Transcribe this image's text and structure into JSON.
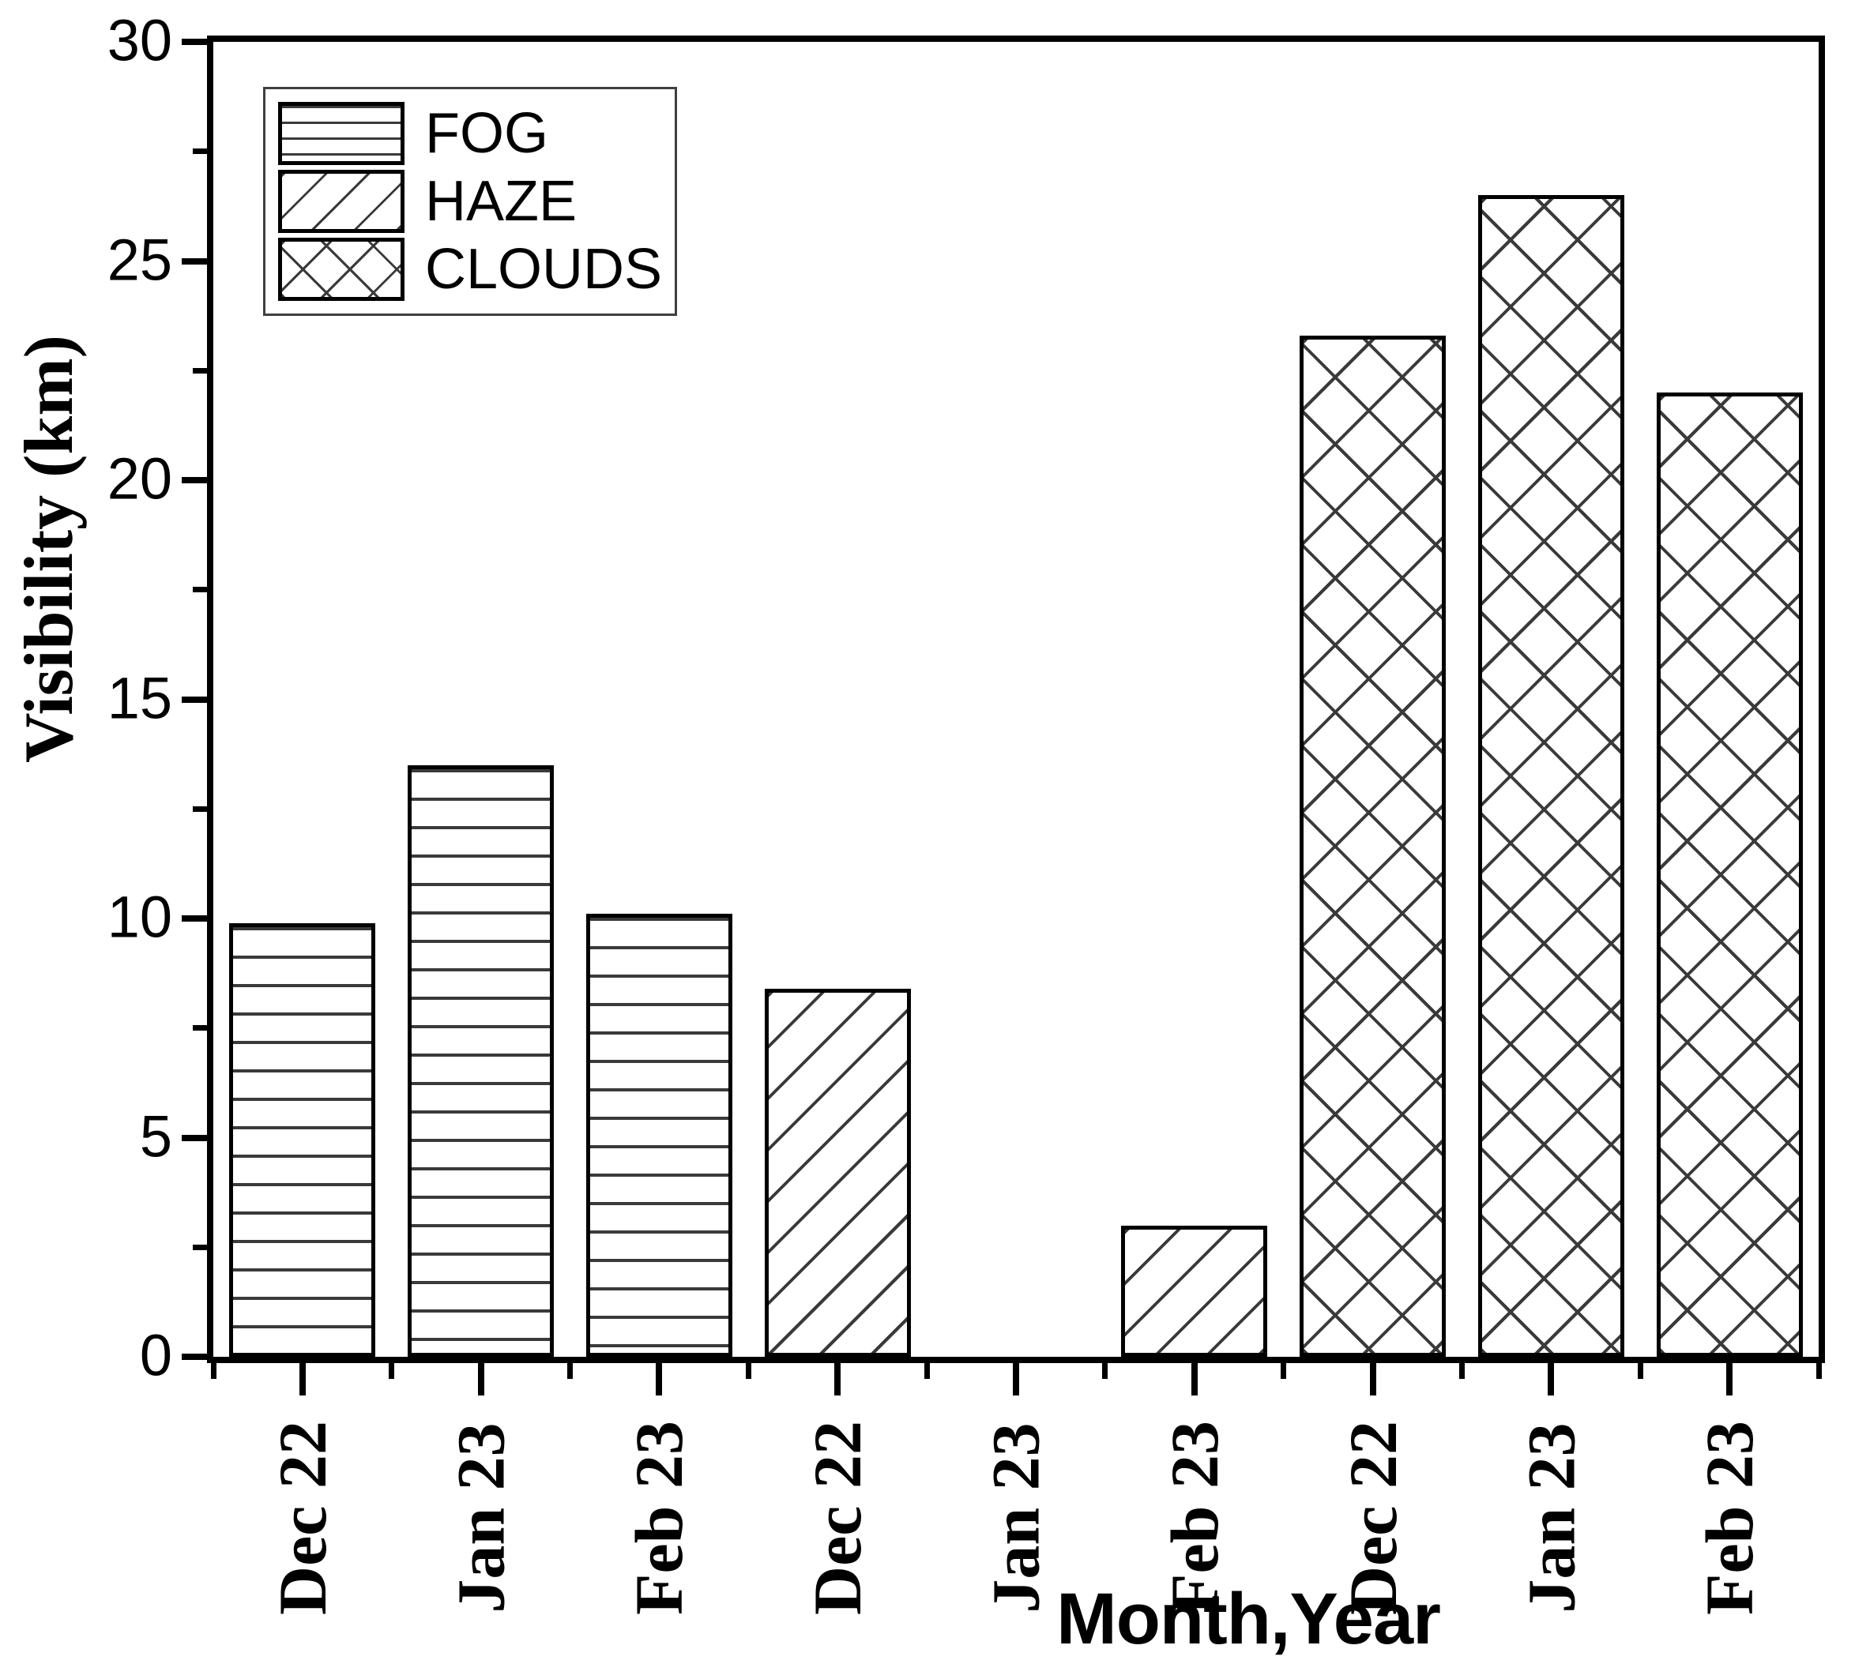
{
  "figure": {
    "background": "#ffffff",
    "ink_color": "#000000",
    "pattern_line_color": "#3a3a3a"
  },
  "chart_data": {
    "type": "bar",
    "title": "",
    "xlabel": "Month,Year",
    "ylabel": "Visibility (km)",
    "ylim": [
      0,
      30
    ],
    "y_major_ticks": [
      0,
      5,
      10,
      15,
      20,
      25,
      30
    ],
    "y_minor_step": 2.5,
    "grid": false,
    "legend_position": "top-left-inside",
    "categories": [
      "Dec 22",
      "Jan 23",
      "Feb 23",
      "Dec 22",
      "Jan 23",
      "Feb 23",
      "Dec 22",
      "Jan 23",
      "Feb 23"
    ],
    "series": [
      {
        "name": "FOG",
        "pattern": "horizontal-lines",
        "months": [
          "Dec 22",
          "Jan 23",
          "Feb 23"
        ],
        "values": [
          9.9,
          13.5,
          10.1
        ]
      },
      {
        "name": "HAZE",
        "pattern": "diagonal-lines",
        "months": [
          "Dec 22",
          "Jan 23",
          "Feb 23"
        ],
        "values": [
          8.4,
          0,
          3.0
        ]
      },
      {
        "name": "CLOUDS",
        "pattern": "crosshatch",
        "months": [
          "Dec 22",
          "Jan 23",
          "Feb 23"
        ],
        "values": [
          23.3,
          26.5,
          22.0
        ]
      }
    ],
    "bars": [
      {
        "slot": 0,
        "category": "Dec 22",
        "series": "FOG",
        "value": 9.9
      },
      {
        "slot": 1,
        "category": "Jan 23",
        "series": "FOG",
        "value": 13.5
      },
      {
        "slot": 2,
        "category": "Feb 23",
        "series": "FOG",
        "value": 10.1
      },
      {
        "slot": 3,
        "category": "Dec 22",
        "series": "HAZE",
        "value": 8.4
      },
      {
        "slot": 4,
        "category": "Jan 23",
        "series": "HAZE",
        "value": 0
      },
      {
        "slot": 5,
        "category": "Feb 23",
        "series": "HAZE",
        "value": 3.0
      },
      {
        "slot": 6,
        "category": "Dec 22",
        "series": "CLOUDS",
        "value": 23.3
      },
      {
        "slot": 7,
        "category": "Jan 23",
        "series": "CLOUDS",
        "value": 26.5
      },
      {
        "slot": 8,
        "category": "Feb 23",
        "series": "CLOUDS",
        "value": 22.0
      }
    ]
  },
  "legend": {
    "items": [
      {
        "label": "FOG",
        "pattern": "horizontal-lines"
      },
      {
        "label": "HAZE",
        "pattern": "diagonal-lines"
      },
      {
        "label": "CLOUDS",
        "pattern": "crosshatch"
      }
    ]
  }
}
